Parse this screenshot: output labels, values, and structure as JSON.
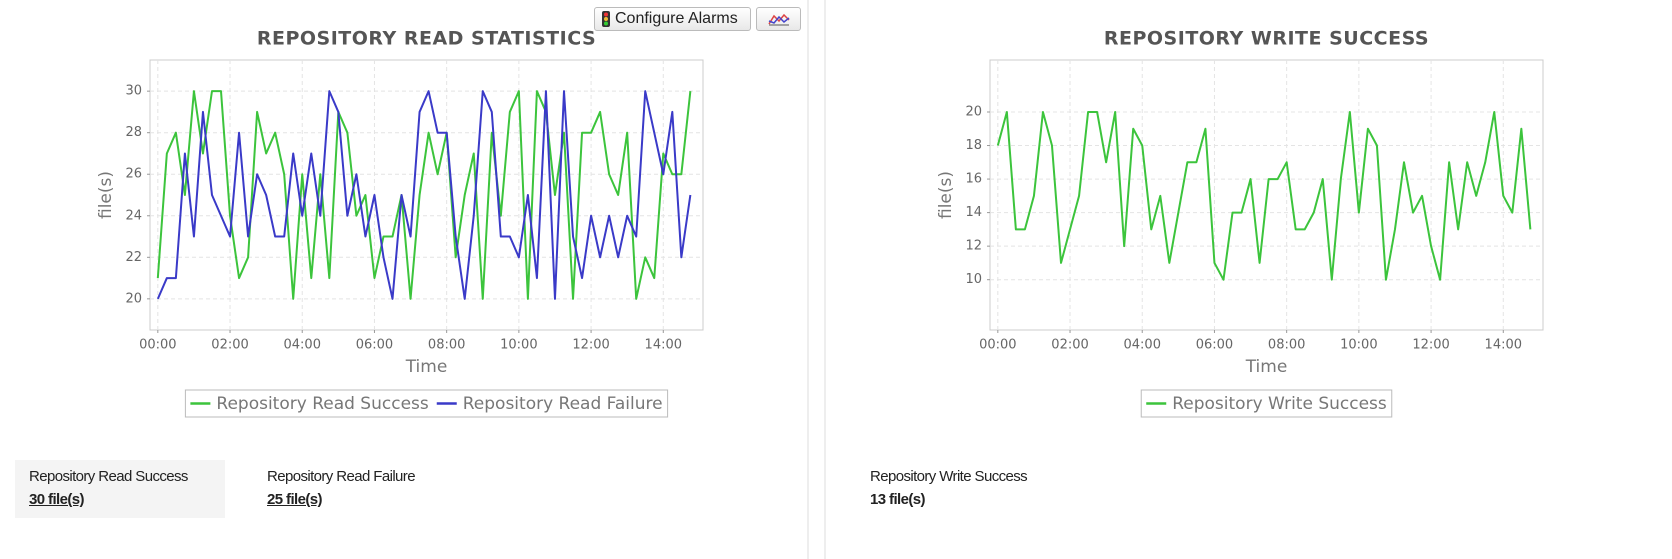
{
  "toolbar": {
    "configure_button": "Configure Alarms"
  },
  "chart_data": [
    {
      "type": "line",
      "title": "REPOSITORY READ STATISTICS",
      "x_label": "Time",
      "y_label": "file(s)",
      "x": [
        0,
        15,
        30,
        45,
        60,
        75,
        90,
        105,
        120,
        135,
        150,
        165,
        180,
        195,
        210,
        225,
        240,
        255,
        270,
        285,
        300,
        315,
        330,
        345,
        360,
        375,
        390,
        405,
        420,
        435,
        450,
        465,
        480,
        495,
        510,
        525,
        540,
        555,
        570,
        585,
        600,
        615,
        630,
        645,
        660,
        675,
        690,
        705,
        720,
        735,
        750,
        765,
        780,
        795,
        810,
        825,
        840,
        855,
        870,
        885
      ],
      "xlim": [
        -13,
        906
      ],
      "xticks": [
        {
          "value": 0,
          "label": "00:00"
        },
        {
          "value": 120,
          "label": "02:00"
        },
        {
          "value": 240,
          "label": "04:00"
        },
        {
          "value": 360,
          "label": "06:00"
        },
        {
          "value": 480,
          "label": "08:00"
        },
        {
          "value": 600,
          "label": "10:00"
        },
        {
          "value": 720,
          "label": "12:00"
        },
        {
          "value": 840,
          "label": "14:00"
        }
      ],
      "ylim": [
        18.5,
        31.5
      ],
      "yticks": [
        20,
        22,
        24,
        26,
        28,
        30
      ],
      "grid": true,
      "series": [
        {
          "name": "Repository Read Success",
          "color": "#3cc43c",
          "values": [
            21,
            27,
            28,
            25,
            30,
            27,
            30,
            30,
            24,
            21,
            22,
            29,
            27,
            28,
            26,
            20,
            26,
            21,
            26,
            21,
            29,
            28,
            24,
            25,
            21,
            23,
            23,
            25,
            20,
            25,
            28,
            26,
            28,
            22,
            25,
            27,
            20,
            28,
            24,
            29,
            30,
            20,
            30,
            29,
            25,
            28,
            20,
            28,
            28,
            29,
            26,
            25,
            28,
            20,
            22,
            21,
            27,
            26,
            26,
            30
          ]
        },
        {
          "name": "Repository Read Failure",
          "color": "#3a3ac8",
          "values": [
            20,
            21,
            21,
            27,
            23,
            29,
            25,
            24,
            23,
            28,
            23,
            26,
            25,
            23,
            23,
            27,
            24,
            27,
            24,
            30,
            29,
            24,
            26,
            23,
            25,
            22,
            20,
            25,
            23,
            29,
            30,
            28,
            28,
            23,
            20,
            24,
            30,
            29,
            23,
            23,
            22,
            25,
            21,
            30,
            20,
            30,
            23,
            21,
            24,
            22,
            24,
            22,
            24,
            23,
            30,
            28,
            26,
            29,
            22,
            25
          ]
        }
      ]
    },
    {
      "type": "line",
      "title": "REPOSITORY WRITE SUCCESS",
      "x_label": "Time",
      "y_label": "file(s)",
      "x": [
        0,
        15,
        30,
        45,
        60,
        75,
        90,
        105,
        120,
        135,
        150,
        165,
        180,
        195,
        210,
        225,
        240,
        255,
        270,
        285,
        300,
        315,
        330,
        345,
        360,
        375,
        390,
        405,
        420,
        435,
        450,
        465,
        480,
        495,
        510,
        525,
        540,
        555,
        570,
        585,
        600,
        615,
        630,
        645,
        660,
        675,
        690,
        705,
        720,
        735,
        750,
        765,
        780,
        795,
        810,
        825,
        840,
        855,
        870,
        885
      ],
      "xlim": [
        -13,
        906
      ],
      "xticks": [
        {
          "value": 0,
          "label": "00:00"
        },
        {
          "value": 120,
          "label": "02:00"
        },
        {
          "value": 240,
          "label": "04:00"
        },
        {
          "value": 360,
          "label": "06:00"
        },
        {
          "value": 480,
          "label": "08:00"
        },
        {
          "value": 600,
          "label": "10:00"
        },
        {
          "value": 720,
          "label": "12:00"
        },
        {
          "value": 840,
          "label": "14:00"
        }
      ],
      "ylim": [
        7,
        23.1
      ],
      "yticks": [
        10,
        12,
        14,
        16,
        18,
        20
      ],
      "grid": true,
      "series": [
        {
          "name": "Repository Write Success",
          "color": "#3cc43c",
          "values": [
            18,
            20,
            13,
            13,
            15,
            20,
            18,
            11,
            13,
            15,
            20,
            20,
            17,
            20,
            12,
            19,
            18,
            13,
            15,
            11,
            14,
            17,
            17,
            19,
            11,
            10,
            14,
            14,
            16,
            11,
            16,
            16,
            17,
            13,
            13,
            14,
            16,
            10,
            16,
            20,
            14,
            19,
            18,
            10,
            13,
            17,
            14,
            15,
            12,
            10,
            17,
            13,
            17,
            15,
            17,
            20,
            15,
            14,
            19,
            13
          ]
        }
      ]
    }
  ],
  "summary": [
    {
      "label": "Repository Read Success",
      "value": "30 file(s)"
    },
    {
      "label": "Repository Read Failure",
      "value": "25 file(s)"
    },
    {
      "label": "Repository Write Success",
      "value": "13 file(s)"
    }
  ]
}
